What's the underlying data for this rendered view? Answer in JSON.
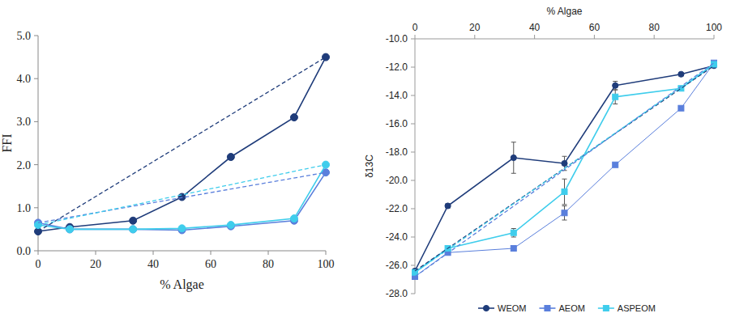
{
  "chart_data": [
    {
      "type": "line",
      "ylabel": "FFI",
      "xlabel": "% Algae",
      "xlim": [
        0,
        100
      ],
      "xticks": [
        0,
        20,
        40,
        60,
        80,
        100
      ],
      "ylim": [
        0,
        5
      ],
      "yticks": [
        {
          "value": 0,
          "label": "0.0"
        },
        {
          "value": 1,
          "label": "1.0"
        },
        {
          "value": 2,
          "label": "2.0"
        },
        {
          "value": 3,
          "label": "3.0"
        },
        {
          "value": 4,
          "label": "4.0"
        },
        {
          "value": 5,
          "label": "5.0"
        }
      ],
      "series": [
        {
          "color": "#1f3c7a",
          "marker": "circle",
          "line_style": "solid",
          "x": [
            0,
            11,
            33,
            50,
            67,
            89,
            100
          ],
          "values": [
            0.45,
            0.55,
            0.7,
            1.25,
            2.18,
            3.1,
            4.5
          ]
        },
        {
          "color": "#5a7fdc",
          "marker": "circle",
          "line_style": "solid",
          "x": [
            0,
            11,
            33,
            50,
            67,
            89,
            100
          ],
          "values": [
            0.65,
            0.5,
            0.5,
            0.48,
            0.57,
            0.7,
            1.82
          ]
        },
        {
          "color": "#3fcdec",
          "marker": "circle",
          "line_style": "solid",
          "x": [
            0,
            11,
            33,
            50,
            67,
            89,
            100
          ],
          "values": [
            0.6,
            0.5,
            0.5,
            0.52,
            0.6,
            0.75,
            2.0
          ]
        },
        {
          "color": "#1f3c7a",
          "marker": "none",
          "line_style": "dashed",
          "x": [
            0,
            100
          ],
          "values": [
            0.45,
            4.5
          ]
        },
        {
          "color": "#5a7fdc",
          "marker": "none",
          "line_style": "dashed",
          "x": [
            0,
            100
          ],
          "values": [
            0.65,
            1.82
          ]
        },
        {
          "color": "#3fcdec",
          "marker": "none",
          "line_style": "dashed",
          "x": [
            0,
            100
          ],
          "values": [
            0.6,
            2.0
          ]
        }
      ]
    },
    {
      "type": "line",
      "ylabel": "δ13C",
      "xlabel": "% Algae",
      "legend": "bottom",
      "xlim": [
        0,
        100
      ],
      "xticks": [
        0,
        20,
        40,
        60,
        80,
        100
      ],
      "ylim": [
        -28,
        -10
      ],
      "yticks": [
        {
          "value": -28,
          "label": "-28.0"
        },
        {
          "value": -26,
          "label": "-26.0"
        },
        {
          "value": -24,
          "label": "-24.0"
        },
        {
          "value": -22,
          "label": "-22.0"
        },
        {
          "value": -20,
          "label": "-20.0"
        },
        {
          "value": -18,
          "label": "-18.0"
        },
        {
          "value": -16,
          "label": "-16.0"
        },
        {
          "value": -14,
          "label": "-14.0"
        },
        {
          "value": -12,
          "label": "-12.0"
        },
        {
          "value": -10,
          "label": "-10.0"
        }
      ],
      "series": [
        {
          "name": "WEOM",
          "color": "#1f3c7a",
          "marker": "circle",
          "line_style": "solid",
          "x": [
            0,
            11,
            33,
            50,
            67,
            89,
            100
          ],
          "values": [
            -26.4,
            -21.8,
            -18.4,
            -18.8,
            -13.3,
            -12.5,
            -11.9
          ],
          "errors": [
            0.15,
            0.15,
            1.1,
            0.5,
            0.3,
            0.1,
            0.1
          ]
        },
        {
          "name": "AEOM",
          "color": "#5a7fdc",
          "marker": "square",
          "line_style": "solid",
          "x": [
            0,
            11,
            33,
            50,
            67,
            89,
            100
          ],
          "values": [
            -26.8,
            -25.1,
            -24.8,
            -22.3,
            -18.9,
            -14.9,
            -11.7
          ],
          "errors": [
            0.1,
            0.1,
            0.15,
            0.5,
            0.1,
            0.1,
            0.1
          ]
        },
        {
          "name": "ASPEOM",
          "color": "#3fcdec",
          "marker": "square",
          "line_style": "solid",
          "x": [
            0,
            11,
            33,
            50,
            67,
            89,
            100
          ],
          "values": [
            -26.5,
            -24.8,
            -23.7,
            -20.8,
            -14.1,
            -13.5,
            -11.8
          ],
          "errors": [
            0.1,
            0.2,
            0.3,
            0.9,
            0.5,
            0.1,
            0.1
          ]
        },
        {
          "color": "#1f3c7a",
          "marker": "none",
          "line_style": "dashed",
          "x": [
            0,
            100
          ],
          "values": [
            -26.4,
            -11.9
          ]
        },
        {
          "color": "#5a7fdc",
          "marker": "none",
          "line_style": "dashed",
          "x": [
            0,
            100
          ],
          "values": [
            -26.8,
            -11.7
          ]
        },
        {
          "color": "#3fcdec",
          "marker": "none",
          "line_style": "dashed",
          "x": [
            0,
            100
          ],
          "values": [
            -26.5,
            -11.8
          ]
        }
      ]
    }
  ]
}
